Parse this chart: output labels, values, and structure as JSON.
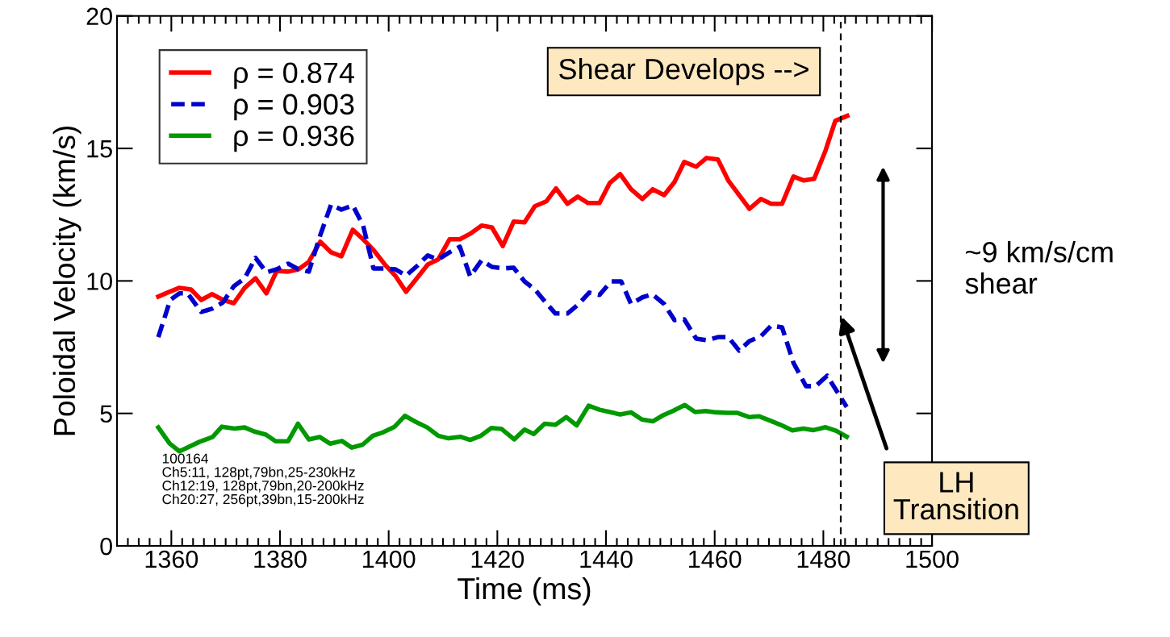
{
  "chart_data": {
    "type": "line",
    "xlabel": "Time (ms)",
    "ylabel": "Poloidal Velocity (km/s)",
    "xlim": [
      1350,
      1500
    ],
    "xticks": [
      1360,
      1380,
      1400,
      1420,
      1440,
      1460,
      1480,
      1500
    ],
    "ylim": [
      0,
      20
    ],
    "yticks": [
      0,
      5,
      10,
      15,
      20
    ],
    "grid": false,
    "legend": "top left",
    "series": [
      {
        "name": "ρ = 0.874",
        "color": "#ff0000",
        "line_style": "solid",
        "x": [
          1357.6,
          1359.3,
          1361.5,
          1363.6,
          1365.5,
          1367.5,
          1369.5,
          1371.5,
          1373.5,
          1375.5,
          1377.5,
          1379.4,
          1381.5,
          1383.4,
          1385.3,
          1387.4,
          1389.4,
          1391.3,
          1393.4,
          1395.3,
          1397.2,
          1399.3,
          1401.2,
          1403.2,
          1405.2,
          1407.2,
          1409.1,
          1411.2,
          1413.1,
          1415.0,
          1417.1,
          1419.0,
          1421.0,
          1423.0,
          1425.0,
          1426.9,
          1429.0,
          1430.8,
          1432.9,
          1434.8,
          1436.7,
          1438.8,
          1440.7,
          1442.6,
          1444.6,
          1446.7,
          1448.6,
          1450.7,
          1452.6,
          1454.4,
          1456.6,
          1458.5,
          1460.6,
          1462.5,
          1464.5,
          1466.4,
          1468.5,
          1470.4,
          1472.4,
          1474.5,
          1476.4,
          1478.3,
          1480.4,
          1482.2,
          1484.4
        ],
        "values": [
          9.41,
          9.56,
          9.74,
          9.68,
          9.28,
          9.5,
          9.28,
          9.16,
          9.74,
          10.1,
          9.53,
          10.38,
          10.35,
          10.44,
          10.72,
          11.48,
          11.08,
          10.93,
          11.93,
          11.57,
          11.17,
          10.62,
          10.2,
          9.59,
          10.1,
          10.62,
          10.81,
          11.57,
          11.57,
          11.78,
          12.09,
          12.02,
          11.32,
          12.24,
          12.21,
          12.82,
          13.0,
          13.49,
          12.91,
          13.18,
          12.94,
          12.94,
          13.7,
          14.03,
          13.46,
          13.09,
          13.46,
          13.24,
          13.73,
          14.49,
          14.31,
          14.64,
          14.58,
          13.79,
          13.24,
          12.72,
          13.09,
          12.91,
          12.91,
          13.94,
          13.79,
          13.85,
          14.92,
          16.04,
          16.23
        ]
      },
      {
        "name": "ρ = 0.903",
        "color": "#0000cc",
        "line_style": "dashed",
        "x": [
          1357.6,
          1359.8,
          1361.5,
          1363.0,
          1365.5,
          1367.5,
          1369.5,
          1371.5,
          1373.5,
          1375.5,
          1377.5,
          1379.4,
          1381.5,
          1383.4,
          1385.3,
          1387.4,
          1389.4,
          1391.3,
          1393.4,
          1395.3,
          1397.2,
          1399.3,
          1401.2,
          1403.2,
          1405.2,
          1407.2,
          1409.1,
          1411.2,
          1413.1,
          1415.0,
          1417.1,
          1419.0,
          1421.0,
          1423.0,
          1425.0,
          1426.9,
          1429.0,
          1430.7,
          1432.9,
          1435.0,
          1436.9,
          1438.8,
          1440.9,
          1442.8,
          1444.6,
          1446.7,
          1448.5,
          1450.7,
          1452.6,
          1454.4,
          1456.6,
          1458.6,
          1460.6,
          1462.5,
          1464.5,
          1466.4,
          1468.5,
          1470.4,
          1472.4,
          1474.5,
          1476.8,
          1478.6,
          1480.7,
          1484.3
        ],
        "values": [
          7.88,
          9.28,
          9.53,
          9.53,
          8.83,
          8.95,
          9.19,
          9.8,
          10.1,
          10.87,
          10.32,
          10.44,
          10.65,
          10.44,
          10.35,
          11.72,
          12.88,
          12.69,
          12.85,
          12.09,
          10.47,
          10.47,
          10.44,
          10.2,
          10.56,
          10.96,
          10.81,
          11.08,
          11.29,
          10.17,
          10.78,
          10.53,
          10.47,
          10.5,
          9.98,
          9.68,
          9.16,
          8.77,
          8.77,
          9.13,
          9.56,
          9.47,
          9.98,
          9.98,
          9.13,
          9.38,
          9.5,
          9.13,
          8.52,
          8.55,
          7.82,
          7.76,
          7.88,
          7.88,
          7.37,
          7.73,
          7.91,
          8.31,
          8.25,
          6.91,
          6.03,
          6.03,
          6.42,
          5.24
        ]
      },
      {
        "name": "ρ = 0.936",
        "color": "#009900",
        "line_style": "solid",
        "x": [
          1357.6,
          1359.7,
          1361.5,
          1365.2,
          1367.6,
          1369.3,
          1371.6,
          1373.5,
          1375.2,
          1377.4,
          1379.2,
          1381.5,
          1383.3,
          1385.3,
          1387.3,
          1389.2,
          1391.4,
          1393.2,
          1395.2,
          1397.1,
          1399.0,
          1401.1,
          1403.0,
          1405.0,
          1407.1,
          1409.1,
          1411.0,
          1413.2,
          1415.0,
          1417.0,
          1418.9,
          1420.8,
          1423.1,
          1425.0,
          1426.7,
          1428.7,
          1430.7,
          1432.7,
          1434.6,
          1436.8,
          1438.8,
          1440.7,
          1442.6,
          1444.6,
          1446.6,
          1448.6,
          1450.5,
          1452.5,
          1454.5,
          1456.4,
          1458.3,
          1460.3,
          1462.3,
          1464.2,
          1466.4,
          1468.2,
          1470.2,
          1472.1,
          1474.3,
          1476.3,
          1478.2,
          1480.4,
          1482.4,
          1484.3
        ],
        "values": [
          4.47,
          3.86,
          3.57,
          3.93,
          4.11,
          4.5,
          4.43,
          4.47,
          4.32,
          4.2,
          3.95,
          3.95,
          4.61,
          4.02,
          4.11,
          3.86,
          3.96,
          3.71,
          3.82,
          4.16,
          4.29,
          4.5,
          4.91,
          4.68,
          4.47,
          4.16,
          4.06,
          4.12,
          4.0,
          4.16,
          4.45,
          4.41,
          4.02,
          4.39,
          4.22,
          4.61,
          4.57,
          4.86,
          4.55,
          5.29,
          5.14,
          5.05,
          4.96,
          5.04,
          4.77,
          4.7,
          4.93,
          5.11,
          5.32,
          5.05,
          5.09,
          5.04,
          5.02,
          5.02,
          4.86,
          4.89,
          4.73,
          4.57,
          4.36,
          4.43,
          4.37,
          4.48,
          4.34,
          4.12
        ]
      }
    ],
    "ref_lines": [
      {
        "axis": "x",
        "value": 1483.2,
        "color": "#000000",
        "line_style": "dashed"
      }
    ],
    "annotations": [
      "Shear Develops -->",
      "LH\nTransition",
      "~9 km/s/cm\nshear",
      "100164\nCh5:11, 128pt,79bn,25-230kHz\nCh12:19, 128pt,79bn,20-200kHz\nCh20:27, 256pt,39bn,15-200kHz"
    ]
  }
}
